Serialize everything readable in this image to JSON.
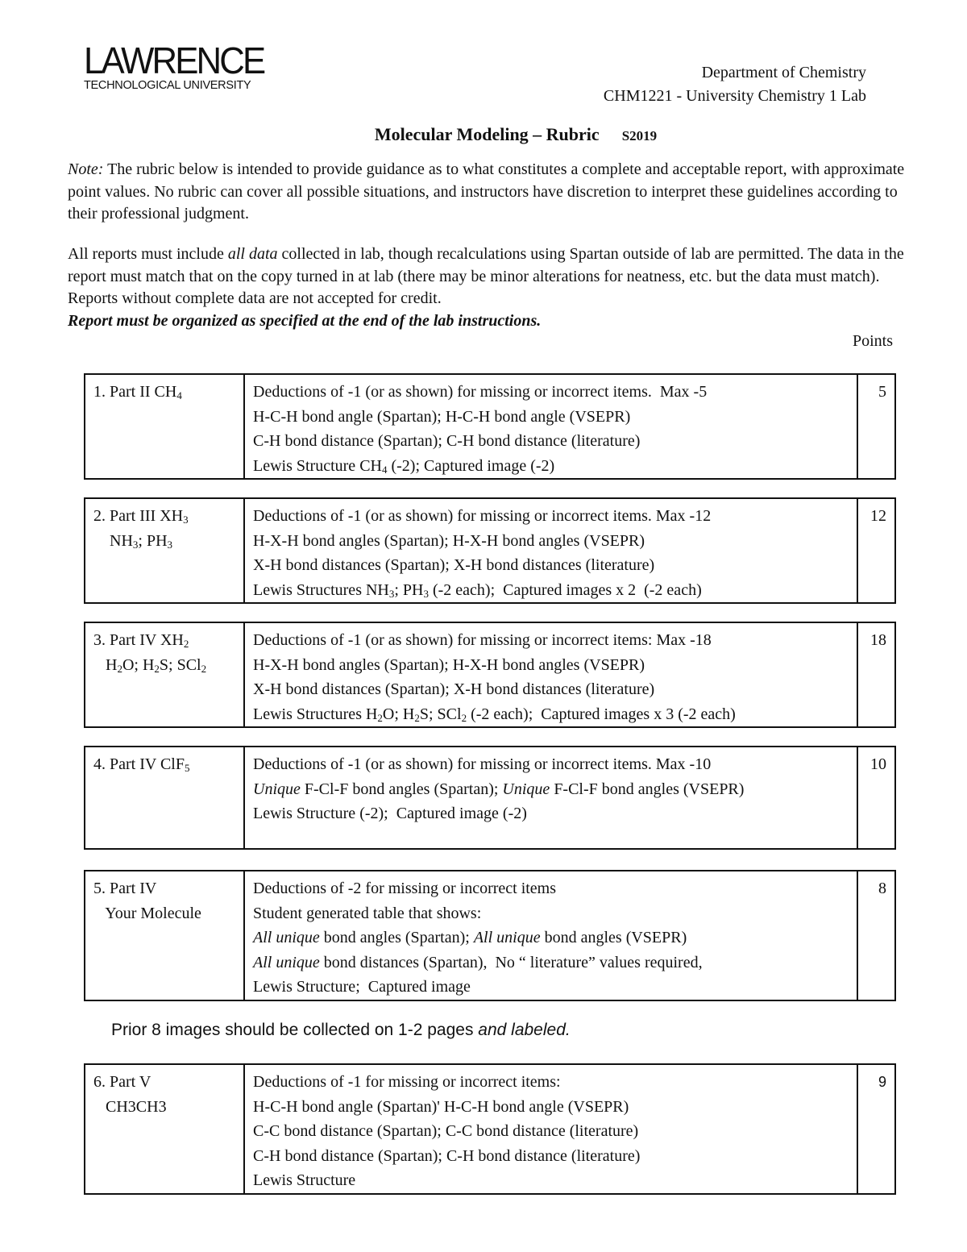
{
  "logo": {
    "name": "LAWRENCE",
    "subtitle": "TECHNOLOGICAL UNIVERSITY"
  },
  "header": {
    "department": "Department of Chemistry",
    "course": "CHM1221 - University Chemistry 1 Lab"
  },
  "title": {
    "text": "Molecular Modeling – Rubric",
    "term": "S2019"
  },
  "note": {
    "label": "Note:",
    "text": " The rubric below is intended to provide guidance as to what constitutes a complete and acceptable report, with approximate point values.  No rubric can cover all possible situations, and instructors have discretion to interpret these guidelines according to their professional judgment."
  },
  "requirements": {
    "pre": "All reports must include ",
    "italic": "all data",
    "post": " collected in lab, though recalculations using Spartan outside of lab are permitted.  The data in the report must match that on the copy turned in at lab (there may be minor alterations for neatness, etc. but the data must match).  Reports without complete data are not accepted for credit.",
    "bold": "Report must be organized as specified at the end of the lab instructions."
  },
  "points_header": "Points",
  "mid_note": {
    "pre": "Prior 8 images should be collected on 1-2 pages ",
    "italic": "and labeled."
  },
  "sections": [
    {
      "label": [
        [
          {
            "t": "1. Part II CH"
          },
          {
            "t": "4",
            "sub": true
          }
        ]
      ],
      "points": "5",
      "lines": [
        [
          {
            "t": "Deductions of -1 (or as shown) for missing or incorrect items.  Max -5"
          }
        ],
        [
          {
            "t": "H-C-H bond angle (Spartan); H-C-H bond angle (VSEPR)"
          }
        ],
        [
          {
            "t": "C-H bond distance (Spartan); C-H bond distance (literature)"
          }
        ],
        [
          {
            "t": "Lewis Structure CH"
          },
          {
            "t": "4",
            "sub": true
          },
          {
            "t": " (-2); Captured image (-2)"
          }
        ]
      ]
    },
    {
      "label": [
        [
          {
            "t": "2. Part III XH"
          },
          {
            "t": "3",
            "sub": true
          }
        ],
        [
          {
            "t": "    NH"
          },
          {
            "t": "3",
            "sub": true
          },
          {
            "t": "; PH"
          },
          {
            "t": "3",
            "sub": true
          }
        ]
      ],
      "points": "12",
      "lines": [
        [
          {
            "t": "Deductions of -1 (or as shown) for missing or incorrect items. Max -12"
          }
        ],
        [
          {
            "t": "H-X-H bond angles (Spartan); H-X-H bond angles (VSEPR)"
          }
        ],
        [
          {
            "t": "X-H bond distances (Spartan); X-H bond distances (literature)"
          }
        ],
        [
          {
            "t": "Lewis Structures NH"
          },
          {
            "t": "3",
            "sub": true
          },
          {
            "t": "; PH"
          },
          {
            "t": "3",
            "sub": true
          },
          {
            "t": " (-2 each);  Captured images x 2  (-2 each)"
          }
        ]
      ]
    },
    {
      "label": [
        [
          {
            "t": "3. Part IV XH"
          },
          {
            "t": "2",
            "sub": true
          }
        ],
        [
          {
            "t": "   H"
          },
          {
            "t": "2",
            "sub": true
          },
          {
            "t": "O; H"
          },
          {
            "t": "2",
            "sub": true
          },
          {
            "t": "S; SCl"
          },
          {
            "t": "2",
            "sub": true
          }
        ]
      ],
      "points": "18",
      "lines": [
        [
          {
            "t": "Deductions of -1 (or as shown) for missing or incorrect items: Max -18"
          }
        ],
        [
          {
            "t": "H-X-H bond angles (Spartan); H-X-H bond angles (VSEPR)"
          }
        ],
        [
          {
            "t": "X-H bond distances (Spartan); X-H bond distances (literature)"
          }
        ],
        [
          {
            "t": "Lewis Structures H"
          },
          {
            "t": "2",
            "sub": true
          },
          {
            "t": "O; H"
          },
          {
            "t": "2",
            "sub": true
          },
          {
            "t": "S; SCl"
          },
          {
            "t": "2",
            "sub": true
          },
          {
            "t": " (-2 each);  Captured images x 3 (-2 each)"
          }
        ]
      ]
    },
    {
      "label": [
        [
          {
            "t": "4. Part IV ClF"
          },
          {
            "t": "5",
            "sub": true
          }
        ]
      ],
      "points": "10",
      "lines": [
        [
          {
            "t": "Deductions of -1 (or as shown) for missing or incorrect items. Max -10"
          }
        ],
        [
          {
            "t": "Unique",
            "i": true
          },
          {
            "t": " F-Cl-F bond angles (Spartan); "
          },
          {
            "t": "Unique",
            "i": true
          },
          {
            "t": " F-Cl-F bond angles (VSEPR)"
          }
        ],
        [
          {
            "t": "Lewis Structure (-2);  Captured image (-2)"
          }
        ]
      ]
    },
    {
      "label": [
        [
          {
            "t": "5. Part IV"
          }
        ],
        [
          {
            "t": "   Your Molecule"
          }
        ]
      ],
      "points": "8",
      "lines": [
        [
          {
            "t": "Deductions of -2 for missing or incorrect items"
          }
        ],
        [
          {
            "t": "Student generated table that shows:"
          }
        ],
        [
          {
            "t": "All unique",
            "i": true
          },
          {
            "t": " bond angles (Spartan); "
          },
          {
            "t": "All unique",
            "i": true
          },
          {
            "t": " bond angles (VSEPR)"
          }
        ],
        [
          {
            "t": "All unique",
            "i": true
          },
          {
            "t": " bond distances (Spartan),  No “ literature” values required,"
          }
        ],
        [
          {
            "t": "Lewis Structure;  Captured image"
          }
        ]
      ]
    },
    {
      "label": [
        [
          {
            "t": "6. Part V"
          }
        ],
        [
          {
            "t": "   CH3CH3"
          }
        ]
      ],
      "points": "9",
      "lines": [
        [
          {
            "t": "Deductions of -1 for missing or incorrect items:"
          }
        ],
        [
          {
            "t": "H-C-H bond angle (Spartan)' H-C-H bond angle (VSEPR)"
          }
        ],
        [
          {
            "t": "C-C bond distance (Spartan); C-C bond distance (literature)"
          }
        ],
        [
          {
            "t": "C-H bond distance (Spartan); C-H bond distance (literature)"
          }
        ],
        [
          {
            "t": "Lewis Structure"
          }
        ]
      ]
    }
  ]
}
